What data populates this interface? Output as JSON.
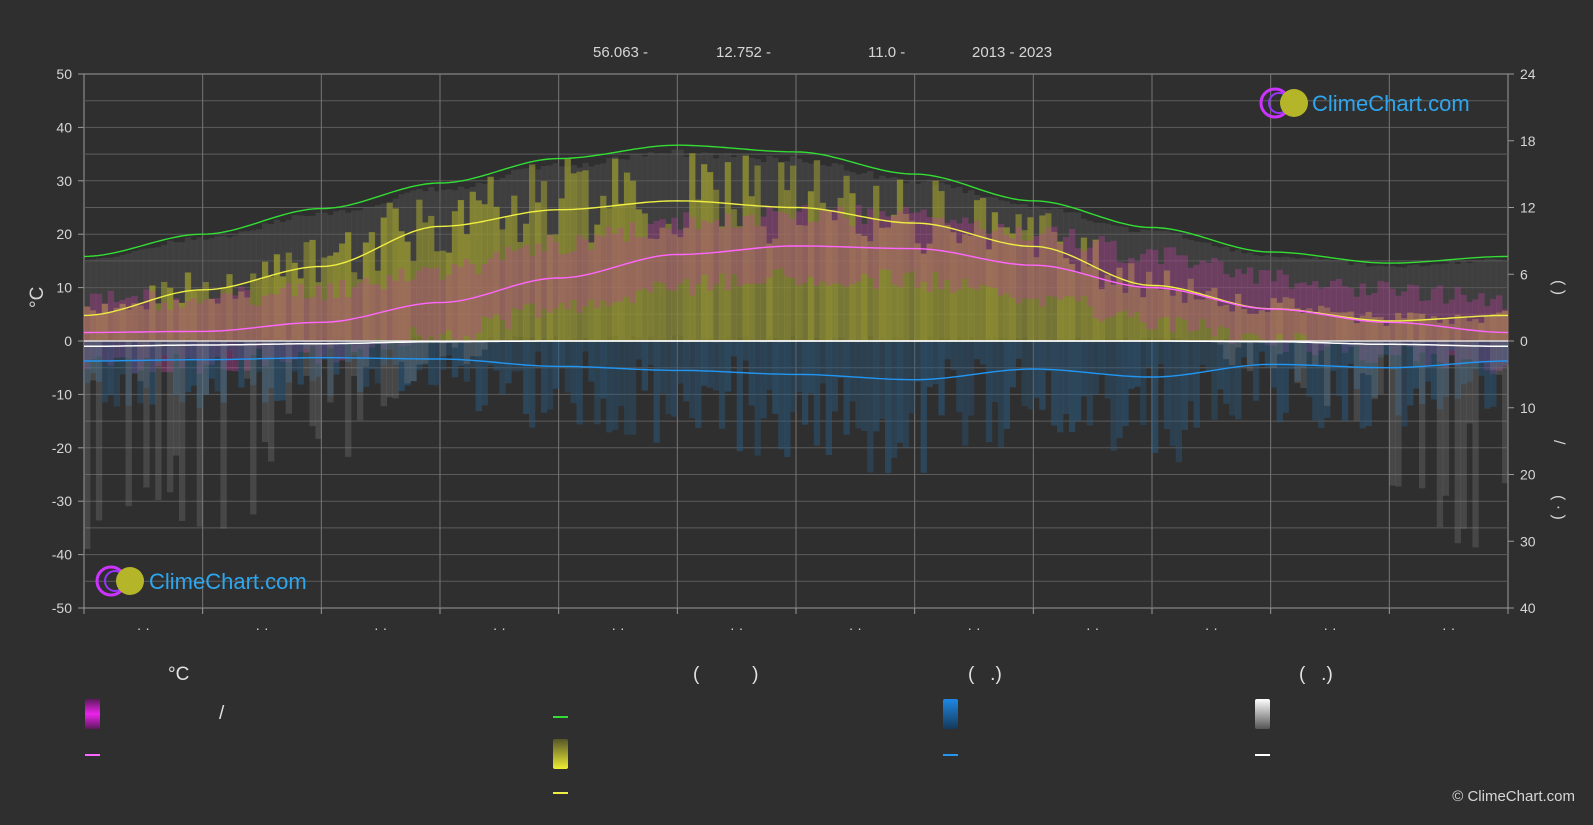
{
  "header": {
    "latitude": "56.063 -",
    "longitude": "12.752 -",
    "elevation": "11.0 -",
    "years": "2013 - 2023"
  },
  "axes": {
    "left_unit": "°C",
    "left_ticks": [
      "50",
      "40",
      "30",
      "20",
      "10",
      "0",
      "-10",
      "-20",
      "-30",
      "-40",
      "-50"
    ],
    "right_upper_ticks": [
      "24",
      "18",
      "12",
      "6",
      "0"
    ],
    "right_lower_ticks": [
      "10",
      "20",
      "30",
      "40"
    ],
    "right_upper_label": "(      )",
    "right_lower_label_a": "/",
    "right_lower_label_b": "( ·   )",
    "month_tick_label": "· ·"
  },
  "legend": {
    "temp_head": "°C",
    "sun_head": "(          )",
    "rain_head": "(   .)",
    "snow_head": "(   .)",
    "temp_range_label": "/",
    "colors": {
      "temp_range": "#e020e0",
      "temp_mean": "#ff66ff",
      "daylight": "#33dd33",
      "sunshine": "#dddd33",
      "sunshine_mean": "#eeee44",
      "rain": "#1e88e5",
      "rain_mean": "#2196f3",
      "snow": "#e8e8e8",
      "snow_mean": "#ffffff"
    }
  },
  "brand": {
    "name": "ClimeChart.com",
    "copyright": "© ClimeChart.com"
  },
  "chart_data": {
    "type": "line",
    "x_unit": "month",
    "x": [
      1,
      2,
      3,
      4,
      5,
      6,
      7,
      8,
      9,
      10,
      11,
      12
    ],
    "ylim_left": [
      -50,
      50
    ],
    "ylim_right_upper": [
      0,
      24
    ],
    "ylim_right_lower": [
      0,
      40
    ],
    "grid": true,
    "series": [
      {
        "key": "daylight_hours",
        "axis": "right_upper",
        "color": "#33dd33",
        "values": [
          7.6,
          9.6,
          11.9,
          14.2,
          16.4,
          17.6,
          17.0,
          15.0,
          12.6,
          10.2,
          8.0,
          7.0
        ]
      },
      {
        "key": "sunshine_hours",
        "axis": "right_upper",
        "color": "#eeee44",
        "values": [
          2.3,
          4.6,
          6.7,
          10.3,
          11.8,
          12.6,
          12.0,
          10.6,
          8.5,
          5.0,
          2.9,
          1.8
        ]
      },
      {
        "key": "temp_mean",
        "axis": "left",
        "color": "#ff66ff",
        "values": [
          1.6,
          1.8,
          3.5,
          7.2,
          11.8,
          16.2,
          17.8,
          17.3,
          14.2,
          10.0,
          6.0,
          3.5
        ]
      },
      {
        "key": "rain_mean_mm",
        "axis": "right_lower",
        "color": "#2196f3",
        "values": [
          3.0,
          2.8,
          2.5,
          2.7,
          3.8,
          4.4,
          5.0,
          5.8,
          4.2,
          5.4,
          3.5,
          4.0
        ]
      },
      {
        "key": "snow_mean_mm",
        "axis": "right_lower",
        "color": "#ffffff",
        "values": [
          0.8,
          0.6,
          0.4,
          0.1,
          0,
          0,
          0,
          0,
          0,
          0,
          0.1,
          0.5
        ]
      }
    ]
  }
}
